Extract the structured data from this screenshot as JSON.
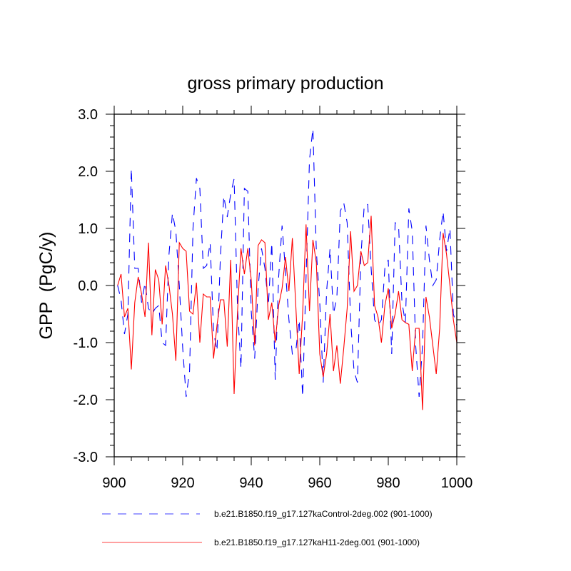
{
  "chart_data": {
    "type": "line",
    "title": "gross primary production",
    "xlabel": "",
    "ylabel": "GPP  (PgC/y)",
    "xlim": [
      900,
      1000
    ],
    "ylim": [
      -3.0,
      3.0
    ],
    "x_ticks": [
      900,
      920,
      940,
      960,
      980,
      1000
    ],
    "x_tick_labels": [
      "900",
      "920",
      "940",
      "960",
      "980",
      "1000"
    ],
    "y_ticks": [
      -3,
      -2,
      -1,
      0,
      1,
      2,
      3
    ],
    "y_tick_labels": [
      "-3.0",
      "-2.0",
      "-1.0",
      "0.0",
      "1.0",
      "2.0",
      "3.0"
    ],
    "grid": false,
    "legend_placement": "bottom",
    "x_start": 901,
    "series": [
      {
        "name": "b.e21.B1850.f19_g17.127kaControl-2deg.002 (901-1000)",
        "color": "#0000ff",
        "style": "dashed",
        "values": [
          0.0,
          -0.25,
          -0.85,
          -0.5,
          2.05,
          0.3,
          0.3,
          -0.3,
          0.05,
          -0.4,
          -0.5,
          -0.4,
          -0.35,
          -1.0,
          -1.05,
          0.55,
          1.27,
          0.95,
          0.0,
          -1.1,
          -1.95,
          -1.5,
          1.0,
          1.88,
          1.7,
          0.3,
          0.35,
          0.75,
          -0.8,
          -1.15,
          0.5,
          1.57,
          1.2,
          1.6,
          1.87,
          -0.4,
          -1.45,
          1.7,
          1.65,
          -0.45,
          -1.28,
          -0.05,
          0.65,
          0.3,
          -0.35,
          0.75,
          -1.65,
          0.15,
          1.05,
          0.25,
          -0.6,
          -1.2,
          -1.15,
          -0.6,
          -1.95,
          0.15,
          2.2,
          2.75,
          0.6,
          -0.3,
          -1.7,
          -0.1,
          0.65,
          -0.5,
          -0.2,
          1.3,
          1.45,
          1.1,
          -0.6,
          -1.5,
          -1.7,
          0.5,
          1.42,
          1.42,
          0.3,
          -0.6,
          -0.7,
          -0.6,
          0.3,
          0.45,
          -1.2,
          1.1,
          1.05,
          -0.3,
          -0.65,
          1.35,
          0.95,
          -1.05,
          -1.95,
          -1.05,
          1.05,
          0.45,
          0.0,
          0.1,
          0.8,
          1.3,
          0.6,
          1.0,
          -0.5,
          -0.7
        ]
      },
      {
        "name": "b.e21.B1850.f19_g17.127kaH11-2deg.001 (901-1000)",
        "color": "#ff0000",
        "style": "solid",
        "values": [
          0.0,
          0.2,
          -0.55,
          -0.4,
          -1.47,
          -0.3,
          0.15,
          -0.15,
          -0.55,
          0.75,
          -0.87,
          0.28,
          0.1,
          -0.68,
          0.35,
          0.0,
          -0.5,
          -1.32,
          0.75,
          0.65,
          0.6,
          -0.45,
          -0.5,
          0.05,
          -1.0,
          -0.15,
          -0.2,
          -0.2,
          -1.28,
          -0.7,
          -0.25,
          -0.25,
          -1.07,
          0.45,
          -1.9,
          -0.45,
          0.65,
          0.2,
          0.65,
          0.1,
          -1.05,
          0.7,
          0.8,
          0.75,
          -0.6,
          -0.3,
          -1.0,
          -0.35,
          -0.05,
          0.5,
          -0.1,
          0.83,
          -0.35,
          -1.55,
          -0.5,
          1.07,
          -0.45,
          0.8,
          0.4,
          -1.2,
          -1.6,
          -1.2,
          -0.5,
          -1.5,
          -1.05,
          -1.72,
          -1.1,
          -0.4,
          0.95,
          -0.1,
          0.0,
          0.6,
          0.35,
          0.4,
          1.22,
          -0.35,
          -0.55,
          -1.0,
          -0.35,
          -0.05,
          -0.75,
          -0.5,
          -0.1,
          -0.6,
          -0.65,
          -0.68,
          -1.5,
          -0.75,
          -0.75,
          -2.18,
          -0.2,
          -0.55,
          -1.05,
          -1.55,
          -0.75,
          0.92,
          0.55,
          0.0,
          -0.6,
          -1.0
        ]
      }
    ]
  }
}
